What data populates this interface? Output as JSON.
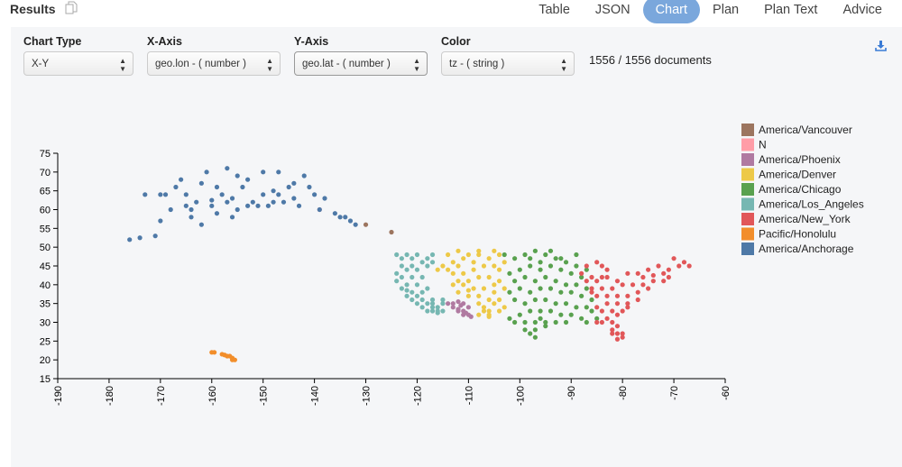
{
  "header": {
    "title": "Results",
    "tabs": [
      "Table",
      "JSON",
      "Chart",
      "Plan",
      "Plan Text",
      "Advice"
    ],
    "active_tab": "Chart"
  },
  "controls": {
    "chart_type": {
      "label": "Chart Type",
      "value": "X-Y"
    },
    "x_axis": {
      "label": "X-Axis",
      "value": "geo.lon - ( number )"
    },
    "y_axis": {
      "label": "Y-Axis",
      "value": "geo.lat - ( number )"
    },
    "color": {
      "label": "Color",
      "value": "tz - ( string )"
    },
    "count": "1556 / 1556 documents"
  },
  "chart_data": {
    "type": "scatter",
    "xlabel": "geo.lon",
    "ylabel": "geo.lat",
    "xlim": [
      -190,
      -60
    ],
    "ylim": [
      15,
      75
    ],
    "xticks": [
      -190,
      -180,
      -170,
      -160,
      -150,
      -140,
      -130,
      -120,
      -110,
      -100,
      -90,
      -80,
      -70,
      -60
    ],
    "yticks": [
      15,
      20,
      25,
      30,
      35,
      40,
      45,
      50,
      55,
      60,
      65,
      70,
      75
    ],
    "legend_position": "right",
    "series": [
      {
        "name": "America/Vancouver",
        "color": "#9c755f",
        "points": [
          [
            -130,
            56
          ],
          [
            -125,
            54
          ]
        ]
      },
      {
        "name": "N",
        "color": "#ff9da7",
        "points": [
          [
            -139,
            60
          ]
        ]
      },
      {
        "name": "America/Phoenix",
        "color": "#b07aa1",
        "points": [
          [
            -114,
            35
          ],
          [
            -113,
            34
          ],
          [
            -112,
            33.5
          ],
          [
            -112,
            33
          ],
          [
            -111,
            33
          ],
          [
            -111,
            32
          ],
          [
            -110.5,
            32.5
          ],
          [
            -110,
            32
          ],
          [
            -111,
            35
          ],
          [
            -112,
            35.5
          ],
          [
            -113,
            35
          ],
          [
            -109.5,
            31.5
          ],
          [
            -110,
            34
          ],
          [
            -111.5,
            34.5
          ]
        ]
      },
      {
        "name": "America/Denver",
        "color": "#edc948",
        "points": [
          [
            -114,
            44
          ],
          [
            -113,
            46
          ],
          [
            -112,
            45
          ],
          [
            -111,
            47
          ],
          [
            -110,
            48
          ],
          [
            -108,
            48
          ],
          [
            -106,
            47
          ],
          [
            -104,
            48
          ],
          [
            -103,
            46
          ],
          [
            -105,
            45
          ],
          [
            -107,
            45
          ],
          [
            -109,
            44
          ],
          [
            -111,
            43
          ],
          [
            -112,
            41
          ],
          [
            -110,
            41
          ],
          [
            -108,
            42
          ],
          [
            -106,
            42
          ],
          [
            -104,
            41
          ],
          [
            -105,
            40
          ],
          [
            -107,
            39
          ],
          [
            -109,
            39
          ],
          [
            -111,
            40
          ],
          [
            -113,
            40
          ],
          [
            -112,
            38
          ],
          [
            -110,
            37
          ],
          [
            -108,
            37
          ],
          [
            -106,
            36
          ],
          [
            -104,
            36
          ],
          [
            -105,
            35
          ],
          [
            -107,
            34
          ],
          [
            -106,
            33
          ],
          [
            -104,
            33
          ],
          [
            -103,
            34
          ],
          [
            -108,
            32
          ],
          [
            -106,
            32
          ],
          [
            -113,
            43
          ],
          [
            -115,
            45
          ],
          [
            -116,
            44
          ],
          [
            -109,
            46
          ],
          [
            -104,
            44
          ],
          [
            -103,
            39
          ],
          [
            -108,
            35
          ],
          [
            -110,
            38.5
          ],
          [
            -105,
            38
          ],
          [
            -114,
            48
          ],
          [
            -112,
            49
          ],
          [
            -108,
            49
          ],
          [
            -105,
            49
          ],
          [
            -106,
            31.5
          ],
          [
            -107,
            33
          ]
        ]
      },
      {
        "name": "America/Chicago",
        "color": "#59a14f",
        "points": [
          [
            -103,
            48
          ],
          [
            -101,
            47
          ],
          [
            -99,
            48
          ],
          [
            -97,
            49
          ],
          [
            -95,
            48
          ],
          [
            -93,
            47
          ],
          [
            -91,
            46
          ],
          [
            -89,
            45
          ],
          [
            -87,
            44
          ],
          [
            -88,
            42
          ],
          [
            -90,
            43
          ],
          [
            -92,
            44
          ],
          [
            -94,
            45
          ],
          [
            -96,
            46
          ],
          [
            -98,
            45
          ],
          [
            -100,
            44
          ],
          [
            -102,
            43
          ],
          [
            -101,
            41
          ],
          [
            -99,
            42
          ],
          [
            -97,
            41
          ],
          [
            -95,
            42
          ],
          [
            -93,
            41
          ],
          [
            -91,
            40
          ],
          [
            -89,
            40
          ],
          [
            -87,
            39
          ],
          [
            -88,
            37
          ],
          [
            -90,
            38
          ],
          [
            -92,
            38
          ],
          [
            -94,
            39
          ],
          [
            -96,
            39
          ],
          [
            -98,
            38
          ],
          [
            -100,
            39
          ],
          [
            -102,
            38
          ],
          [
            -101,
            36
          ],
          [
            -99,
            35
          ],
          [
            -97,
            36
          ],
          [
            -95,
            36
          ],
          [
            -93,
            35
          ],
          [
            -91,
            35
          ],
          [
            -89,
            34
          ],
          [
            -87,
            34
          ],
          [
            -88,
            31
          ],
          [
            -90,
            32
          ],
          [
            -92,
            32
          ],
          [
            -94,
            33
          ],
          [
            -96,
            33
          ],
          [
            -98,
            33
          ],
          [
            -100,
            32
          ],
          [
            -102,
            31
          ],
          [
            -101,
            30
          ],
          [
            -99,
            30
          ],
          [
            -97,
            30
          ],
          [
            -95,
            30
          ],
          [
            -93,
            30
          ],
          [
            -91,
            30
          ],
          [
            -97,
            28
          ],
          [
            -98,
            27
          ],
          [
            -97,
            26
          ],
          [
            -99,
            28
          ],
          [
            -95,
            29
          ],
          [
            -96,
            31
          ],
          [
            -86,
            36
          ],
          [
            -86,
            33
          ],
          [
            -87,
            30
          ],
          [
            -85,
            31
          ],
          [
            -89,
            48
          ],
          [
            -92,
            47
          ],
          [
            -94,
            49
          ],
          [
            -96,
            44
          ],
          [
            -98,
            47
          ]
        ]
      },
      {
        "name": "America/Los_Angeles",
        "color": "#76b7b2",
        "points": [
          [
            -124,
            48
          ],
          [
            -123,
            47
          ],
          [
            -122,
            48
          ],
          [
            -121,
            47
          ],
          [
            -120,
            48
          ],
          [
            -118,
            47
          ],
          [
            -117,
            48
          ],
          [
            -119,
            46
          ],
          [
            -121,
            45
          ],
          [
            -123,
            45
          ],
          [
            -124,
            43
          ],
          [
            -122,
            44
          ],
          [
            -120,
            44
          ],
          [
            -118,
            45
          ],
          [
            -117,
            46
          ],
          [
            -123,
            42
          ],
          [
            -121,
            42
          ],
          [
            -119,
            42
          ],
          [
            -124,
            41
          ],
          [
            -122,
            40
          ],
          [
            -120,
            40
          ],
          [
            -123,
            39
          ],
          [
            -121,
            38
          ],
          [
            -122,
            37
          ],
          [
            -120,
            37
          ],
          [
            -121,
            36
          ],
          [
            -119,
            36
          ],
          [
            -120,
            35
          ],
          [
            -118,
            35
          ],
          [
            -119,
            34
          ],
          [
            -117,
            34
          ],
          [
            -118,
            33
          ],
          [
            -117,
            33
          ],
          [
            -116,
            33
          ],
          [
            -115,
            33
          ],
          [
            -116,
            34
          ],
          [
            -115,
            36
          ],
          [
            -117,
            36
          ],
          [
            -119,
            38
          ],
          [
            -115,
            35
          ],
          [
            -122,
            38.5
          ],
          [
            -118,
            39
          ],
          [
            -116,
            32.5
          ],
          [
            -117,
            35
          ]
        ]
      },
      {
        "name": "America/New_York",
        "color": "#e15759",
        "points": [
          [
            -87,
            45
          ],
          [
            -85,
            46
          ],
          [
            -84,
            45
          ],
          [
            -83,
            44
          ],
          [
            -84,
            42
          ],
          [
            -86,
            42
          ],
          [
            -85,
            41
          ],
          [
            -83,
            42
          ],
          [
            -81,
            41
          ],
          [
            -79,
            43
          ],
          [
            -77,
            43
          ],
          [
            -75,
            44
          ],
          [
            -73,
            45
          ],
          [
            -71,
            44
          ],
          [
            -69,
            45
          ],
          [
            -68,
            46
          ],
          [
            -70,
            47
          ],
          [
            -67,
            45
          ],
          [
            -71,
            42
          ],
          [
            -72,
            41
          ],
          [
            -74,
            41
          ],
          [
            -76,
            40
          ],
          [
            -78,
            40
          ],
          [
            -80,
            40
          ],
          [
            -82,
            39
          ],
          [
            -84,
            39
          ],
          [
            -86,
            39
          ],
          [
            -85,
            37
          ],
          [
            -83,
            37
          ],
          [
            -81,
            37
          ],
          [
            -79,
            37
          ],
          [
            -77,
            38
          ],
          [
            -75,
            39
          ],
          [
            -77,
            36
          ],
          [
            -79,
            35
          ],
          [
            -81,
            35
          ],
          [
            -83,
            35
          ],
          [
            -85,
            34
          ],
          [
            -84,
            33
          ],
          [
            -82,
            33
          ],
          [
            -80,
            33
          ],
          [
            -79,
            34
          ],
          [
            -81,
            32
          ],
          [
            -83,
            31
          ],
          [
            -85,
            30
          ],
          [
            -82,
            30
          ],
          [
            -81,
            29
          ],
          [
            -82,
            28
          ],
          [
            -81,
            27
          ],
          [
            -80,
            26
          ],
          [
            -81,
            25.5
          ],
          [
            -80,
            27
          ],
          [
            -82,
            27
          ],
          [
            -84,
            30
          ],
          [
            -86,
            38
          ],
          [
            -87,
            41
          ],
          [
            -88,
            43
          ],
          [
            -76,
            42
          ],
          [
            -74,
            42.5
          ],
          [
            -72,
            43
          ]
        ]
      },
      {
        "name": "Pacific/Honolulu",
        "color": "#f28e2b",
        "points": [
          [
            -160,
            22
          ],
          [
            -159.5,
            22
          ],
          [
            -158,
            21.5
          ],
          [
            -157.5,
            21.3
          ],
          [
            -157,
            21
          ],
          [
            -156.5,
            21
          ],
          [
            -156,
            20.5
          ],
          [
            -156,
            20
          ],
          [
            -155.5,
            20
          ]
        ]
      },
      {
        "name": "America/Anchorage",
        "color": "#4e79a7",
        "points": [
          [
            -176,
            52
          ],
          [
            -174,
            52.5
          ],
          [
            -171,
            53
          ],
          [
            -170,
            57
          ],
          [
            -169,
            64
          ],
          [
            -167,
            66
          ],
          [
            -166,
            68
          ],
          [
            -165,
            64
          ],
          [
            -165,
            61
          ],
          [
            -164,
            60
          ],
          [
            -163,
            62
          ],
          [
            -162,
            67
          ],
          [
            -161,
            70
          ],
          [
            -160,
            61
          ],
          [
            -159,
            59
          ],
          [
            -159,
            66
          ],
          [
            -158,
            64
          ],
          [
            -157,
            62
          ],
          [
            -157,
            71
          ],
          [
            -156,
            58
          ],
          [
            -156,
            63
          ],
          [
            -155,
            60
          ],
          [
            -154,
            66
          ],
          [
            -153,
            68
          ],
          [
            -152,
            62
          ],
          [
            -151,
            61
          ],
          [
            -150,
            64
          ],
          [
            -150,
            70
          ],
          [
            -149,
            61
          ],
          [
            -148,
            65
          ],
          [
            -147,
            64
          ],
          [
            -147,
            70
          ],
          [
            -146,
            62
          ],
          [
            -145,
            66
          ],
          [
            -144,
            67
          ],
          [
            -143,
            61
          ],
          [
            -142,
            69
          ],
          [
            -141,
            66
          ],
          [
            -140,
            64
          ],
          [
            -139,
            60
          ],
          [
            -136,
            59
          ],
          [
            -135,
            58
          ],
          [
            -134,
            58
          ],
          [
            -133,
            57
          ],
          [
            -132,
            56
          ],
          [
            -168,
            60
          ],
          [
            -162,
            56
          ],
          [
            -160,
            62.5
          ],
          [
            -153,
            61
          ],
          [
            -148,
            62
          ],
          [
            -144,
            63
          ],
          [
            -138,
            63
          ],
          [
            -164,
            58
          ],
          [
            -155,
            69
          ],
          [
            -170,
            64
          ],
          [
            -173,
            64
          ]
        ]
      }
    ]
  }
}
